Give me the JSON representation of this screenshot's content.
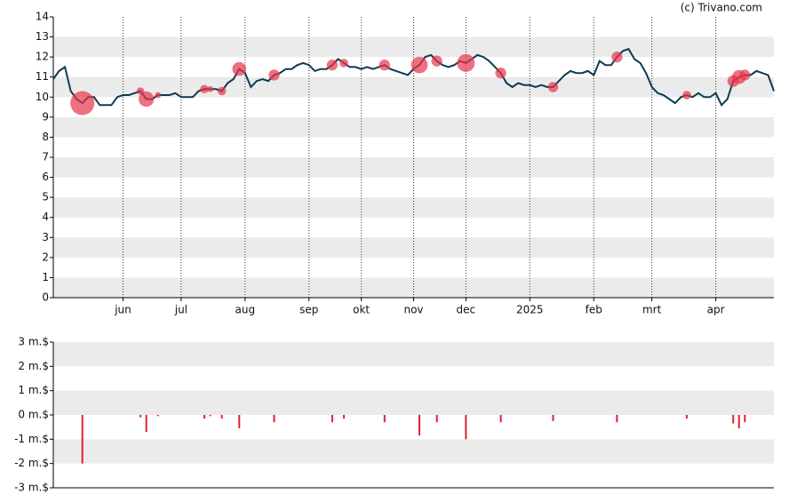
{
  "source": "(c) Trivano.com",
  "chart_data": [
    {
      "type": "line",
      "categories": [
        null,
        null,
        null,
        null,
        null,
        null,
        null,
        null,
        null,
        null,
        null,
        null,
        "jun",
        null,
        null,
        null,
        null,
        null,
        null,
        null,
        null,
        null,
        "jul",
        null,
        null,
        null,
        null,
        null,
        null,
        null,
        null,
        null,
        null,
        "aug",
        null,
        null,
        null,
        null,
        null,
        null,
        null,
        null,
        null,
        null,
        "sep",
        null,
        null,
        null,
        null,
        null,
        null,
        null,
        null,
        "okt",
        null,
        null,
        null,
        null,
        null,
        null,
        null,
        null,
        "nov",
        null,
        null,
        null,
        null,
        null,
        null,
        null,
        null,
        "dec",
        null,
        null,
        null,
        null,
        null,
        null,
        null,
        null,
        null,
        null,
        "2025",
        null,
        null,
        null,
        null,
        null,
        null,
        null,
        null,
        null,
        null,
        "feb",
        null,
        null,
        null,
        null,
        null,
        null,
        null,
        null,
        null,
        "mrt",
        null,
        null,
        null,
        null,
        null,
        null,
        null,
        null,
        null,
        null,
        "apr",
        null,
        null,
        null,
        null,
        null,
        null,
        null,
        null,
        null,
        null
      ],
      "values": [
        10.9,
        11.3,
        11.5,
        10.3,
        9.9,
        9.7,
        10.0,
        10.0,
        9.6,
        9.6,
        9.6,
        10.0,
        10.1,
        10.1,
        10.2,
        10.3,
        9.9,
        9.9,
        10.1,
        10.1,
        10.1,
        10.2,
        10.0,
        10.0,
        10.0,
        10.3,
        10.4,
        10.4,
        10.4,
        10.3,
        10.7,
        10.9,
        11.4,
        11.2,
        10.5,
        10.8,
        10.9,
        10.8,
        11.1,
        11.2,
        11.4,
        11.4,
        11.6,
        11.7,
        11.6,
        11.3,
        11.4,
        11.4,
        11.6,
        11.9,
        11.7,
        11.5,
        11.5,
        11.4,
        11.5,
        11.4,
        11.5,
        11.6,
        11.4,
        11.3,
        11.2,
        11.1,
        11.4,
        11.6,
        12.0,
        12.1,
        11.8,
        11.6,
        11.5,
        11.6,
        11.8,
        11.7,
        11.9,
        12.1,
        12.0,
        11.8,
        11.5,
        11.2,
        10.7,
        10.5,
        10.7,
        10.6,
        10.6,
        10.5,
        10.6,
        10.5,
        10.5,
        10.8,
        11.1,
        11.3,
        11.2,
        11.2,
        11.3,
        11.1,
        11.8,
        11.6,
        11.6,
        12.0,
        12.3,
        12.4,
        11.9,
        11.7,
        11.2,
        10.5,
        10.2,
        10.1,
        9.9,
        9.7,
        10.0,
        10.1,
        10.0,
        10.2,
        10.0,
        10.0,
        10.2,
        9.6,
        9.9,
        10.8,
        11.0,
        11.1,
        11.1,
        11.3,
        11.2,
        11.1,
        10.3
      ],
      "color": "#0e3a52",
      "marker_color": "#e8334a",
      "ylim": [
        0,
        14
      ],
      "yticks": [
        0,
        1,
        2,
        3,
        4,
        5,
        6,
        7,
        8,
        9,
        10,
        11,
        12,
        13,
        14
      ],
      "grid": true
    },
    {
      "type": "bar",
      "values": [
        null,
        null,
        null,
        null,
        null,
        -2.0,
        null,
        null,
        null,
        null,
        null,
        null,
        null,
        null,
        null,
        -0.1,
        -0.7,
        null,
        -0.05,
        null,
        null,
        null,
        null,
        null,
        null,
        null,
        -0.15,
        -0.05,
        null,
        -0.15,
        null,
        null,
        -0.55,
        null,
        null,
        null,
        null,
        null,
        -0.3,
        null,
        null,
        null,
        null,
        null,
        null,
        null,
        null,
        null,
        -0.3,
        null,
        -0.15,
        null,
        null,
        null,
        null,
        null,
        null,
        -0.3,
        null,
        null,
        null,
        null,
        null,
        -0.85,
        null,
        null,
        -0.3,
        null,
        null,
        null,
        null,
        -1.0,
        null,
        null,
        null,
        null,
        null,
        -0.3,
        null,
        null,
        null,
        null,
        null,
        null,
        null,
        null,
        -0.25,
        null,
        null,
        null,
        null,
        null,
        null,
        null,
        null,
        null,
        null,
        -0.3,
        null,
        null,
        null,
        null,
        null,
        null,
        null,
        null,
        null,
        null,
        null,
        -0.15,
        null,
        null,
        null,
        null,
        null,
        null,
        null,
        -0.35,
        -0.55,
        -0.3,
        null,
        null,
        null,
        null,
        null
      ],
      "color": "#e0202f",
      "ylim": [
        -3,
        3
      ],
      "yticks": [
        {
          "value": -3,
          "label": "-3 m.$"
        },
        {
          "value": -2,
          "label": "-2 m.$"
        },
        {
          "value": -1,
          "label": "-1 m.$"
        },
        {
          "value": 0,
          "label": "0 m.$"
        },
        {
          "value": 1,
          "label": "1 m.$"
        },
        {
          "value": 2,
          "label": "2 m.$"
        },
        {
          "value": 3,
          "label": "3 m.$"
        }
      ],
      "grid": true
    }
  ]
}
